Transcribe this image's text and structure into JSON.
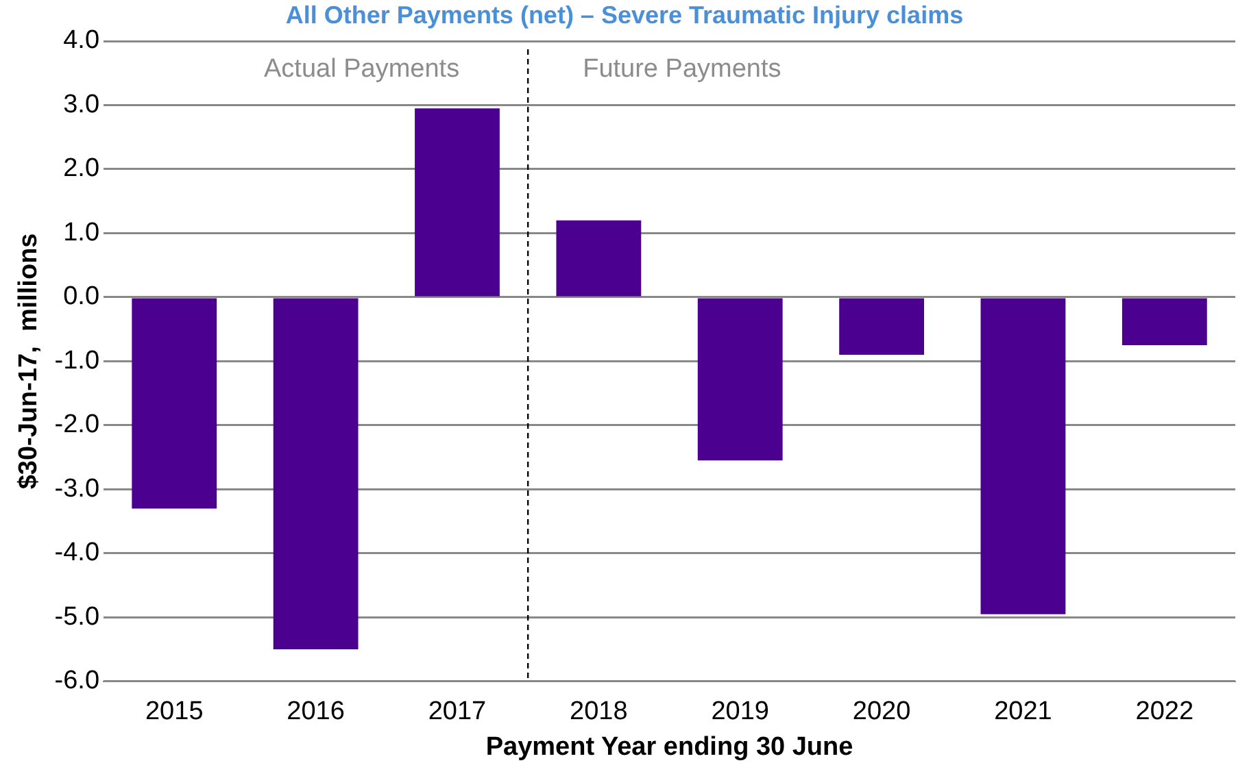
{
  "chart_data": {
    "type": "bar",
    "title": "All Other Payments (net) – Severe Traumatic Injury claims",
    "xlabel": "Payment Year ending 30 June",
    "ylabel": "$30-Jun-17,  millions",
    "x": [
      2015,
      2016,
      2017,
      2018,
      2019,
      2020,
      2021,
      2022
    ],
    "values": [
      -3.3,
      -5.5,
      2.95,
      1.2,
      -2.55,
      -0.9,
      -4.95,
      -0.75
    ],
    "color": "#4b0090",
    "xlim": [
      2014.5,
      2022.5
    ],
    "xticks": [
      2015,
      2016,
      2017,
      2018,
      2019,
      2020,
      2021,
      2022
    ],
    "ylim": [
      -6,
      4
    ],
    "yticks": [
      {
        "value": -6,
        "label": "-6.0"
      },
      {
        "value": -5,
        "label": "-5.0"
      },
      {
        "value": -4,
        "label": "-4.0"
      },
      {
        "value": -3,
        "label": "-3.0"
      },
      {
        "value": -2,
        "label": "-2.0"
      },
      {
        "value": -1,
        "label": "-1.0"
      },
      {
        "value": 0,
        "label": "0.0"
      },
      {
        "value": 1,
        "label": "1.0"
      },
      {
        "value": 2,
        "label": "2.0"
      },
      {
        "value": 3,
        "label": "3.0"
      },
      {
        "value": 4,
        "label": "4.0"
      }
    ],
    "grid": "y",
    "legend": false,
    "ref_lines": [
      {
        "axis": "x",
        "value": 2017.5,
        "color": "#000000",
        "line_style": "dashed"
      }
    ],
    "annotations": [
      "Actual Payments",
      "Future Payments"
    ]
  }
}
